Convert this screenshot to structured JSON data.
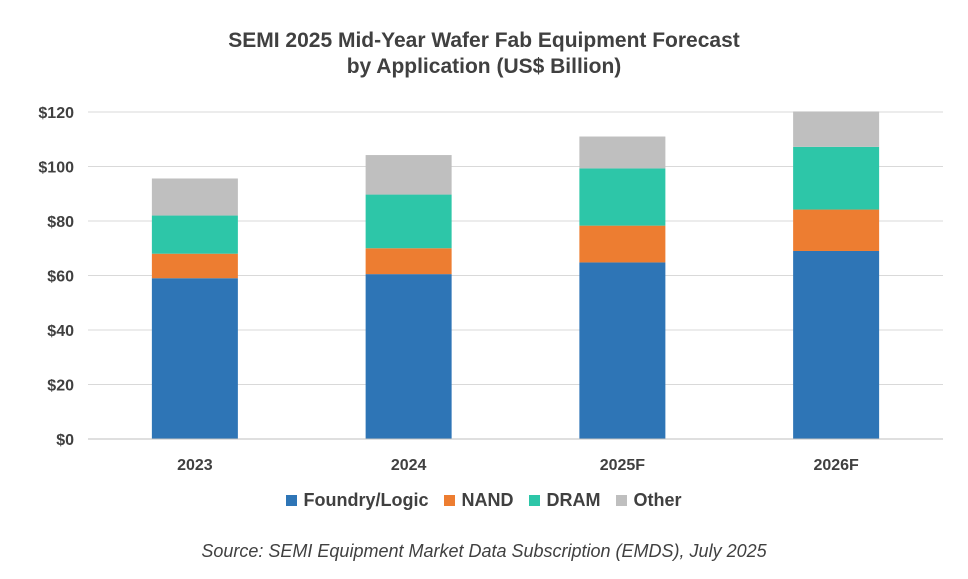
{
  "chart_data": {
    "type": "bar",
    "stacked": true,
    "title_line1": "SEMI 2025 Mid-Year Wafer Fab Equipment Forecast",
    "title_line2": "by Application (US$ Billion)",
    "categories": [
      "2023",
      "2024",
      "2025F",
      "2026F"
    ],
    "series": [
      {
        "name": "Foundry/Logic",
        "color": "#2E75B6",
        "values": [
          59,
          60.5,
          64.8,
          69
        ]
      },
      {
        "name": "NAND",
        "color": "#ED7D31",
        "values": [
          9,
          9.5,
          13.5,
          15.2
        ]
      },
      {
        "name": "DRAM",
        "color": "#2DC6A8",
        "values": [
          14,
          19.7,
          21,
          23
        ]
      },
      {
        "name": "Other",
        "color": "#BFBFBF",
        "values": [
          13.6,
          14.5,
          11.7,
          13
        ]
      }
    ],
    "ylim": [
      0,
      120
    ],
    "yticks": [
      0,
      20,
      40,
      60,
      80,
      100,
      120
    ],
    "ytick_labels": [
      "$0",
      "$20",
      "$40",
      "$60",
      "$80",
      "$100",
      "$120"
    ],
    "grid": true,
    "legend_position": "bottom",
    "source": "Source: SEMI Equipment Market Data Subscription (EMDS), July 2025"
  }
}
